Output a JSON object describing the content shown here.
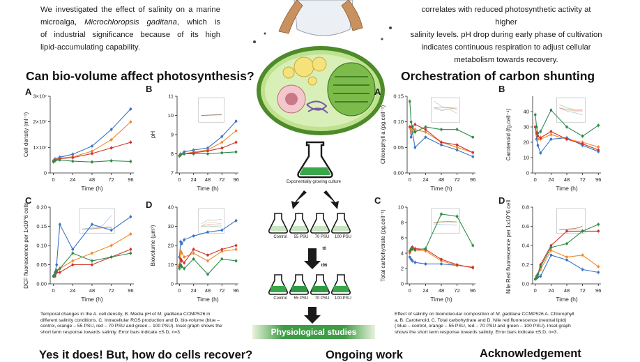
{
  "intro_left": {
    "line1": "We investigated the effect of salinity on a marine",
    "line2a": "microalga, ",
    "line2_species": "Microchloropsis gaditana",
    "line2b": ", which is",
    "line3": "of industrial significance because of its high",
    "line4": "lipid-accumulating capability."
  },
  "intro_right": {
    "line1": "correlates with reduced photosynthetic activity at higher",
    "line2": "salinity levels. pH drop during early phase of cultivation",
    "line3": "indicates continuous respiration to adjust cellular",
    "line4": "metabolism towards recovery."
  },
  "headings": {
    "left": "Can bio-volume affect photosynthesis?",
    "right": "Orchestration of carbon shunting",
    "bottom_left": "Yes it does! But, how do cells recover?",
    "bottom_mid": "Ongoing work",
    "bottom_right": "Acknowledgement"
  },
  "panel_letters": [
    "A",
    "B",
    "C",
    "D",
    "A",
    "B",
    "C",
    "D"
  ],
  "flow": {
    "culture_label": "Exponentially growing culture",
    "flask_labels": [
      "Control",
      "55 PSU",
      "70 PSU",
      "100 PSU"
    ],
    "t0": "t0",
    "t96": "t96",
    "banner": "Physiological studies"
  },
  "captions": {
    "left": {
      "l1": "Temporal changes in the A. cell density, B. Media pH of ",
      "l1_species": "M. gaditana",
      "l1b": " CCMP526 in",
      "l2": "different salinity conditions. C. Intracellular ROS production and D. bio-volume (blue –",
      "l3": "control, orange – 55 PSU, red – 70 PSU and green – 100 PSU). Inset graph shows the",
      "l4": "short term response towards salinity. Error bars indicate ±S.D, n=3."
    },
    "right": {
      "l1": "Effect of salinity on biomolecular composition of ",
      "l1_species": "M. gaditana",
      "l1b": " CCMP526 A. Chlorophyll",
      "l2": "a, B. Carotenoid, C. Total carbohydrate and D. Nile red fluorescence (neutral lipid)",
      "l3": "( blue – control, orange – 55 PSU, red – 70 PSU and green – 100 PSU). Inset graph",
      "l4": "shows the short term response towards salinity. Error bars indicate ±S.D, n=3."
    }
  },
  "colors": {
    "control": "#3b73c4",
    "psu55": "#ef8a2b",
    "psu70": "#d0332b",
    "psu100": "#2f8a4a",
    "banner": "#3f9c46"
  },
  "chart_data": [
    {
      "id": "cell-density",
      "type": "line",
      "ylabel": "Cell density (ml⁻¹)",
      "xlabel": "Time (h)",
      "x": [
        0,
        2,
        8,
        24,
        48,
        72,
        96
      ],
      "ylim": [
        0,
        30000000.0
      ],
      "yticks": [
        "0",
        "1×10⁷",
        "2×10⁷",
        "3×10⁷"
      ],
      "ytick_values": [
        0,
        10000000.0,
        20000000.0,
        30000000.0
      ],
      "xticks": [
        0,
        24,
        48,
        72,
        96
      ],
      "series": [
        {
          "color": "#3b73c4",
          "values": [
            4800000.0,
            5500000.0,
            6200000.0,
            7300000.0,
            10500000.0,
            17000000.0,
            25000000.0
          ]
        },
        {
          "color": "#ef8a2b",
          "values": [
            4600000.0,
            5200000.0,
            5800000.0,
            6300000.0,
            8500000.0,
            13000000.0,
            20000000.0
          ]
        },
        {
          "color": "#d0332b",
          "values": [
            4500000.0,
            5000000.0,
            5600000.0,
            6000000.0,
            7600000.0,
            9800000.0,
            12000000.0
          ]
        },
        {
          "color": "#2f8a4a",
          "values": [
            4400000.0,
            4800000.0,
            5100000.0,
            4600000.0,
            4300000.0,
            4800000.0,
            4500000.0
          ]
        }
      ]
    },
    {
      "id": "ph",
      "type": "line",
      "ylabel": "pH",
      "xlabel": "Time (h)",
      "x": [
        0,
        2,
        8,
        24,
        48,
        72,
        96
      ],
      "ylim": [
        7,
        11
      ],
      "yticks": [
        "7",
        "8",
        "9",
        "10",
        "11"
      ],
      "ytick_values": [
        7,
        8,
        9,
        10,
        11
      ],
      "xticks": [
        0,
        24,
        48,
        72,
        96
      ],
      "inset": true,
      "series": [
        {
          "color": "#3b73c4",
          "values": [
            7.9,
            8.0,
            8.1,
            8.2,
            8.3,
            8.9,
            9.7
          ]
        },
        {
          "color": "#ef8a2b",
          "values": [
            7.9,
            8.0,
            8.0,
            8.1,
            8.2,
            8.6,
            9.2
          ]
        },
        {
          "color": "#d0332b",
          "values": [
            7.9,
            7.95,
            8.0,
            8.05,
            8.15,
            8.3,
            8.6
          ]
        },
        {
          "color": "#2f8a4a",
          "values": [
            7.9,
            7.95,
            8.0,
            8.0,
            8.0,
            8.05,
            8.1
          ]
        }
      ]
    },
    {
      "id": "dcf",
      "type": "line",
      "ylabel": "DCF fluorescence per 1x10^6 cells",
      "xlabel": "Time (h)",
      "x": [
        0,
        2,
        4,
        8,
        24,
        48,
        72,
        96
      ],
      "ylim": [
        0,
        0.2
      ],
      "yticks": [
        "0.00",
        "0.05",
        "0.10",
        "0.15",
        "0.20"
      ],
      "ytick_values": [
        0,
        0.05,
        0.1,
        0.15,
        0.2
      ],
      "xticks": [
        0,
        24,
        48,
        72,
        96
      ],
      "inset": true,
      "series": [
        {
          "color": "#3b73c4",
          "values": [
            0.02,
            0.03,
            0.05,
            0.155,
            0.09,
            0.155,
            0.14,
            0.175
          ]
        },
        {
          "color": "#ef8a2b",
          "values": [
            0.02,
            0.02,
            0.03,
            0.04,
            0.06,
            0.08,
            0.1,
            0.13
          ]
        },
        {
          "color": "#d0332b",
          "values": [
            0.02,
            0.02,
            0.03,
            0.03,
            0.05,
            0.05,
            0.07,
            0.09
          ]
        },
        {
          "color": "#2f8a4a",
          "values": [
            0.02,
            0.025,
            0.035,
            0.04,
            0.08,
            0.06,
            0.07,
            0.08
          ]
        }
      ]
    },
    {
      "id": "biovolume",
      "type": "line",
      "ylabel": "Biovolume (µm³)",
      "xlabel": "Time (h)",
      "x": [
        0,
        2,
        4,
        8,
        24,
        48,
        72,
        96
      ],
      "ylim": [
        0,
        40
      ],
      "yticks": [
        "0",
        "10",
        "20",
        "30",
        "40"
      ],
      "ytick_values": [
        0,
        10,
        20,
        30,
        40
      ],
      "xticks": [
        0,
        24,
        48,
        72,
        96
      ],
      "inset": true,
      "series": [
        {
          "color": "#3b73c4",
          "values": [
            14,
            22,
            21,
            23,
            25,
            27,
            28,
            33
          ]
        },
        {
          "color": "#ef8a2b",
          "values": [
            10,
            17,
            16,
            14,
            16,
            12,
            17,
            18
          ]
        },
        {
          "color": "#d0332b",
          "values": [
            9,
            13,
            12,
            11,
            18,
            15,
            18,
            20
          ]
        },
        {
          "color": "#2f8a4a",
          "values": [
            8,
            10,
            9,
            8,
            13,
            5,
            13,
            12
          ]
        }
      ]
    },
    {
      "id": "chlorophyll",
      "type": "line",
      "ylabel": "Chlorophyll a (pg.cell⁻¹)",
      "xlabel": "Time (h)",
      "x": [
        0,
        2,
        4,
        8,
        24,
        48,
        72,
        96
      ],
      "ylim": [
        0,
        0.15
      ],
      "yticks": [
        "0.00",
        "0.05",
        "0.10",
        "0.15"
      ],
      "ytick_values": [
        0,
        0.05,
        0.1,
        0.15
      ],
      "xticks": [
        0,
        24,
        48,
        72,
        96
      ],
      "inset": true,
      "series": [
        {
          "color": "#3b73c4",
          "values": [
            0.09,
            0.07,
            0.08,
            0.05,
            0.07,
            0.055,
            0.045,
            0.032
          ]
        },
        {
          "color": "#ef8a2b",
          "values": [
            0.09,
            0.08,
            0.085,
            0.085,
            0.08,
            0.06,
            0.05,
            0.04
          ]
        },
        {
          "color": "#d0332b",
          "values": [
            0.09,
            0.09,
            0.09,
            0.095,
            0.085,
            0.06,
            0.055,
            0.04
          ]
        },
        {
          "color": "#2f8a4a",
          "values": [
            0.14,
            0.1,
            0.09,
            0.08,
            0.09,
            0.085,
            0.085,
            0.07
          ]
        }
      ]
    },
    {
      "id": "carotenoid",
      "type": "line",
      "ylabel": "Carotenoid (fg.cell⁻¹)",
      "xlabel": "Time (h)",
      "x": [
        0,
        2,
        4,
        8,
        24,
        48,
        72,
        96
      ],
      "ylim": [
        0,
        50
      ],
      "yticks": [
        "0",
        "10",
        "20",
        "30",
        "40"
      ],
      "ytick_values": [
        0,
        10,
        20,
        30,
        40
      ],
      "xticks": [
        0,
        24,
        48,
        72,
        96
      ],
      "inset": true,
      "series": [
        {
          "color": "#3b73c4",
          "values": [
            30,
            22,
            18,
            13,
            22,
            23,
            18,
            14
          ]
        },
        {
          "color": "#ef8a2b",
          "values": [
            30,
            25,
            22,
            22,
            25,
            22,
            20,
            17
          ]
        },
        {
          "color": "#d0332b",
          "values": [
            30,
            26,
            24,
            23,
            27,
            22,
            19,
            15
          ]
        },
        {
          "color": "#2f8a4a",
          "values": [
            38,
            30,
            26,
            27,
            41,
            30,
            24,
            31
          ]
        }
      ]
    },
    {
      "id": "carbohydrate",
      "type": "line",
      "ylabel": "Total carbohydrate (pg.cell⁻¹)",
      "xlabel": "Time (h)",
      "x": [
        0,
        2,
        4,
        8,
        24,
        48,
        72,
        96
      ],
      "ylim": [
        0,
        10
      ],
      "yticks": [
        "0",
        "2",
        "4",
        "6",
        "8",
        "10"
      ],
      "ytick_values": [
        0,
        2,
        4,
        6,
        8,
        10
      ],
      "xticks": [
        0,
        24,
        48,
        72,
        96
      ],
      "inset": true,
      "series": [
        {
          "color": "#3b73c4",
          "values": [
            3.5,
            3.2,
            3.0,
            2.8,
            2.6,
            2.6,
            2.4,
            2.2
          ]
        },
        {
          "color": "#ef8a2b",
          "values": [
            4.0,
            4.4,
            4.5,
            4.4,
            4.3,
            3.0,
            2.4,
            2.2
          ]
        },
        {
          "color": "#d0332b",
          "values": [
            4.2,
            4.6,
            4.8,
            4.6,
            4.5,
            3.2,
            2.5,
            2.1
          ]
        },
        {
          "color": "#2f8a4a",
          "values": [
            4.3,
            4.5,
            4.6,
            4.4,
            4.6,
            9.1,
            8.8,
            5.0
          ]
        }
      ]
    },
    {
      "id": "nile-red",
      "type": "line",
      "ylabel": "Nile Red fluorescence per 1x10^6 cells",
      "xlabel": "Time (h)",
      "x": [
        0,
        2,
        4,
        8,
        24,
        48,
        72,
        96
      ],
      "ylim": [
        0,
        0.8
      ],
      "yticks": [
        "0.0",
        "0.2",
        "0.4",
        "0.6",
        "0.8"
      ],
      "ytick_values": [
        0,
        0.2,
        0.4,
        0.6,
        0.8
      ],
      "xticks": [
        0,
        24,
        48,
        72,
        96
      ],
      "inset": true,
      "series": [
        {
          "color": "#3b73c4",
          "values": [
            0.05,
            0.06,
            0.07,
            0.08,
            0.3,
            0.25,
            0.15,
            0.12
          ]
        },
        {
          "color": "#ef8a2b",
          "values": [
            0.05,
            0.07,
            0.1,
            0.15,
            0.35,
            0.28,
            0.3,
            0.18
          ]
        },
        {
          "color": "#d0332b",
          "values": [
            0.05,
            0.08,
            0.1,
            0.2,
            0.4,
            0.55,
            0.55,
            0.55
          ]
        },
        {
          "color": "#2f8a4a",
          "values": [
            0.05,
            0.07,
            0.1,
            0.18,
            0.38,
            0.42,
            0.55,
            0.62
          ]
        }
      ]
    }
  ]
}
